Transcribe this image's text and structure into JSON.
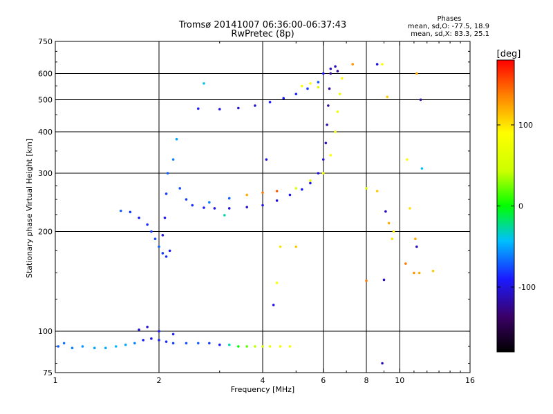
{
  "chart_data": {
    "type": "scatter",
    "title": "Tromsø 20141007 06:36:00-06:37:43",
    "subtitle": "RwPretec (8p)",
    "phase_box": {
      "title": "Phases",
      "line1": "mean, sd,O: -77.5, 18.9",
      "line2": "mean, sd,X: 83.3, 25.1"
    },
    "xlabel": "Frequency [MHz]",
    "ylabel": "Stationary phase Virtual Height [km]",
    "xscale": "log",
    "yscale": "log",
    "xlim": [
      1,
      16
    ],
    "ylim": [
      75,
      750
    ],
    "xticks": [
      1,
      2,
      4,
      6,
      8,
      10,
      16
    ],
    "yticks": [
      75,
      100,
      200,
      300,
      400,
      500,
      600,
      750
    ],
    "xgrid": [
      2,
      4,
      6,
      8,
      10
    ],
    "ygrid": [
      100,
      200,
      300,
      400,
      500,
      600
    ],
    "grid": true,
    "colorbar": {
      "label": "[deg]",
      "min": -180,
      "max": 180,
      "ticks": [
        100,
        0,
        -100
      ],
      "tick_labels": [
        "100",
        "0",
        "-100"
      ],
      "placement": "right"
    },
    "series": [
      {
        "points": [
          [
            1.02,
            90,
            -70
          ],
          [
            1.06,
            92,
            -65
          ],
          [
            1.12,
            89,
            -60
          ],
          [
            1.2,
            90,
            -55
          ],
          [
            1.3,
            89,
            -50
          ],
          [
            1.4,
            89,
            -48
          ],
          [
            1.5,
            90,
            -45
          ],
          [
            1.6,
            91,
            -50
          ],
          [
            1.7,
            92,
            -60
          ],
          [
            1.8,
            94,
            -90
          ],
          [
            1.9,
            95,
            -95
          ],
          [
            2.0,
            94,
            -90
          ],
          [
            2.1,
            93,
            -85
          ],
          [
            2.2,
            92,
            -80
          ],
          [
            2.4,
            92,
            -75
          ],
          [
            2.6,
            92,
            -70
          ],
          [
            2.8,
            92,
            -80
          ],
          [
            3.0,
            91,
            -90
          ],
          [
            3.2,
            91,
            -30
          ],
          [
            3.4,
            90,
            0
          ],
          [
            3.6,
            90,
            20
          ],
          [
            3.8,
            90,
            40
          ],
          [
            4.0,
            90,
            60
          ],
          [
            4.2,
            90,
            70
          ],
          [
            4.5,
            90,
            80
          ],
          [
            4.8,
            90,
            85
          ],
          [
            1.75,
            101,
            -100
          ],
          [
            1.85,
            103,
            -105
          ],
          [
            2.0,
            100,
            -95
          ],
          [
            2.2,
            98,
            -90
          ],
          [
            1.55,
            231,
            -70
          ],
          [
            1.65,
            229,
            -80
          ],
          [
            1.75,
            220,
            -90
          ],
          [
            1.85,
            210,
            -85
          ],
          [
            1.9,
            200,
            -80
          ],
          [
            1.95,
            190,
            -75
          ],
          [
            2.0,
            180,
            -70
          ],
          [
            2.05,
            172,
            -80
          ],
          [
            2.1,
            168,
            -85
          ],
          [
            2.15,
            175,
            -90
          ],
          [
            2.05,
            195,
            -100
          ],
          [
            2.08,
            220,
            -95
          ],
          [
            2.1,
            260,
            -80
          ],
          [
            2.12,
            300,
            -70
          ],
          [
            2.2,
            330,
            -60
          ],
          [
            2.25,
            380,
            -50
          ],
          [
            2.3,
            270,
            -75
          ],
          [
            2.4,
            250,
            -80
          ],
          [
            2.5,
            240,
            -85
          ],
          [
            2.7,
            236,
            -90
          ],
          [
            2.9,
            235,
            -100
          ],
          [
            3.2,
            235,
            -105
          ],
          [
            3.6,
            237,
            -105
          ],
          [
            4.0,
            240,
            -100
          ],
          [
            4.4,
            248,
            -100
          ],
          [
            4.8,
            258,
            -95
          ],
          [
            5.2,
            268,
            -90
          ],
          [
            5.5,
            280,
            -95
          ],
          [
            5.8,
            300,
            -100
          ],
          [
            6.0,
            330,
            -105
          ],
          [
            6.1,
            370,
            -110
          ],
          [
            6.15,
            420,
            -115
          ],
          [
            6.2,
            480,
            -120
          ],
          [
            6.25,
            540,
            -120
          ],
          [
            6.3,
            600,
            -120
          ],
          [
            2.8,
            245,
            -60
          ],
          [
            3.2,
            252,
            -70
          ],
          [
            3.6,
            258,
            120
          ],
          [
            4.0,
            262,
            140
          ],
          [
            4.4,
            265,
            150
          ],
          [
            5.0,
            270,
            60
          ],
          [
            5.5,
            285,
            70
          ],
          [
            6.0,
            300,
            80
          ],
          [
            6.3,
            340,
            90
          ],
          [
            6.5,
            400,
            80
          ],
          [
            6.6,
            460,
            75
          ],
          [
            6.7,
            520,
            80
          ],
          [
            6.8,
            580,
            90
          ],
          [
            2.6,
            470,
            -90
          ],
          [
            3.0,
            468,
            -100
          ],
          [
            3.4,
            472,
            -105
          ],
          [
            3.8,
            480,
            -100
          ],
          [
            4.2,
            492,
            -95
          ],
          [
            4.6,
            505,
            -90
          ],
          [
            5.0,
            520,
            -85
          ],
          [
            5.4,
            540,
            -80
          ],
          [
            5.8,
            565,
            -75
          ],
          [
            6.0,
            600,
            -90
          ],
          [
            6.3,
            620,
            -110
          ],
          [
            6.5,
            630,
            -110
          ],
          [
            6.6,
            610,
            -120
          ],
          [
            5.2,
            550,
            80
          ],
          [
            5.5,
            560,
            90
          ],
          [
            5.8,
            545,
            60
          ],
          [
            8.6,
            640,
            -100
          ],
          [
            9.2,
            510,
            110
          ],
          [
            11.2,
            600,
            120
          ],
          [
            11.5,
            500,
            -120
          ],
          [
            10.5,
            330,
            90
          ],
          [
            11.6,
            310,
            -40
          ],
          [
            8.6,
            265,
            110
          ],
          [
            9.1,
            230,
            -110
          ],
          [
            9.3,
            212,
            120
          ],
          [
            9.5,
            190,
            100
          ],
          [
            11.1,
            190,
            120
          ],
          [
            11.2,
            180,
            -110
          ],
          [
            10.4,
            160,
            140
          ],
          [
            11.0,
            150,
            130
          ],
          [
            11.4,
            150,
            120
          ],
          [
            12.5,
            152,
            110
          ],
          [
            9.0,
            143,
            -110
          ],
          [
            8.0,
            142,
            140
          ],
          [
            9.6,
            200,
            95
          ],
          [
            8.0,
            270,
            60
          ],
          [
            2.7,
            560,
            -40
          ],
          [
            4.4,
            140,
            80
          ],
          [
            4.3,
            120,
            -100
          ],
          [
            4.5,
            180,
            100
          ],
          [
            5.0,
            180,
            110
          ],
          [
            4.1,
            330,
            -100
          ],
          [
            8.9,
            80,
            -110
          ],
          [
            3.1,
            224,
            -30
          ],
          [
            8.9,
            640,
            90
          ],
          [
            7.3,
            640,
            130
          ],
          [
            10.7,
            235,
            100
          ]
        ]
      }
    ]
  }
}
